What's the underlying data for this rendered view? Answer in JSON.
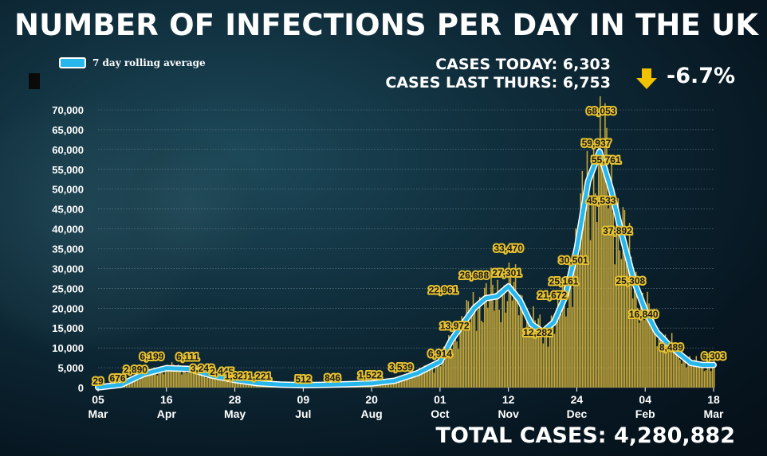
{
  "title": "NUMBER OF INFECTIONS PER DAY IN THE UK",
  "legend": {
    "label": "7 day rolling average",
    "color": "#27b7ec"
  },
  "stats": {
    "cases_today": "CASES TODAY: 6,303",
    "cases_last_thurs": "CASES LAST THURS: 6,753",
    "change": "-6.7%",
    "arrow_icon": "down-arrow-icon",
    "arrow_color": "#f2c200"
  },
  "total": "TOTAL CASES: 4,280,882",
  "colors": {
    "bar": "#c7aa3c",
    "label_box": "#e8c431",
    "label_text": "#1a1a1a",
    "grid": "#6a7f8a"
  },
  "chart_data": {
    "type": "bar",
    "xlabel": "",
    "ylabel": "",
    "ylim": [
      0,
      70000
    ],
    "yticks": [
      0,
      5000,
      10000,
      15000,
      20000,
      25000,
      30000,
      35000,
      40000,
      45000,
      50000,
      55000,
      60000,
      65000,
      70000
    ],
    "ytick_labels": [
      "0",
      "5,000",
      "10,000",
      "15,000",
      "20,000",
      "25,000",
      "30,000",
      "35,000",
      "40,000",
      "45,000",
      "50,000",
      "55,000",
      "60,000",
      "65,000",
      "70,000"
    ],
    "x_start": "2020-03-05",
    "xticks": [
      {
        "date": "2020-03-05",
        "day": "05",
        "month": "Mar"
      },
      {
        "date": "2020-04-16",
        "day": "16",
        "month": "Apr"
      },
      {
        "date": "2020-05-28",
        "day": "28",
        "month": "May"
      },
      {
        "date": "2020-07-09",
        "day": "09",
        "month": "Jul"
      },
      {
        "date": "2020-08-20",
        "day": "20",
        "month": "Aug"
      },
      {
        "date": "2020-10-01",
        "day": "01",
        "month": "Oct"
      },
      {
        "date": "2020-11-12",
        "day": "12",
        "month": "Nov"
      },
      {
        "date": "2020-12-24",
        "day": "24",
        "month": "Dec"
      },
      {
        "date": "2021-02-04",
        "day": "04",
        "month": "Feb"
      },
      {
        "date": "2021-03-18",
        "day": "18",
        "month": "Mar"
      }
    ],
    "series": [
      {
        "name": "7 day rolling average",
        "type": "line",
        "points": [
          {
            "date": "2020-03-05",
            "value": 50
          },
          {
            "date": "2020-03-19",
            "value": 700
          },
          {
            "date": "2020-04-02",
            "value": 3400
          },
          {
            "date": "2020-04-16",
            "value": 4900
          },
          {
            "date": "2020-04-30",
            "value": 4700
          },
          {
            "date": "2020-05-14",
            "value": 3000
          },
          {
            "date": "2020-05-28",
            "value": 1900
          },
          {
            "date": "2020-06-11",
            "value": 1100
          },
          {
            "date": "2020-06-25",
            "value": 750
          },
          {
            "date": "2020-07-09",
            "value": 600
          },
          {
            "date": "2020-07-23",
            "value": 700
          },
          {
            "date": "2020-08-06",
            "value": 850
          },
          {
            "date": "2020-08-20",
            "value": 1050
          },
          {
            "date": "2020-09-03",
            "value": 1700
          },
          {
            "date": "2020-09-17",
            "value": 3600
          },
          {
            "date": "2020-10-01",
            "value": 6500
          },
          {
            "date": "2020-10-08",
            "value": 12000
          },
          {
            "date": "2020-10-15",
            "value": 16000
          },
          {
            "date": "2020-10-22",
            "value": 20000
          },
          {
            "date": "2020-10-29",
            "value": 22500
          },
          {
            "date": "2020-11-05",
            "value": 23000
          },
          {
            "date": "2020-11-12",
            "value": 25500
          },
          {
            "date": "2020-11-19",
            "value": 22000
          },
          {
            "date": "2020-11-26",
            "value": 16000
          },
          {
            "date": "2020-12-03",
            "value": 14000
          },
          {
            "date": "2020-12-10",
            "value": 16500
          },
          {
            "date": "2020-12-17",
            "value": 23000
          },
          {
            "date": "2020-12-24",
            "value": 35000
          },
          {
            "date": "2020-12-31",
            "value": 52000
          },
          {
            "date": "2021-01-07",
            "value": 59500
          },
          {
            "date": "2021-01-14",
            "value": 50000
          },
          {
            "date": "2021-01-21",
            "value": 38000
          },
          {
            "date": "2021-01-28",
            "value": 27000
          },
          {
            "date": "2021-02-04",
            "value": 19500
          },
          {
            "date": "2021-02-11",
            "value": 14000
          },
          {
            "date": "2021-02-18",
            "value": 11000
          },
          {
            "date": "2021-02-25",
            "value": 8500
          },
          {
            "date": "2021-03-04",
            "value": 6200
          },
          {
            "date": "2021-03-11",
            "value": 5700
          },
          {
            "date": "2021-03-18",
            "value": 5700
          }
        ]
      }
    ],
    "annotations": [
      {
        "label": "29",
        "date": "2020-03-05",
        "value": 29
      },
      {
        "label": "676",
        "date": "2020-03-17",
        "value": 676
      },
      {
        "label": "2,890",
        "date": "2020-03-28",
        "value": 2890
      },
      {
        "label": "6,199",
        "date": "2020-04-07",
        "value": 6199
      },
      {
        "label": "6,111",
        "date": "2020-04-29",
        "value": 6111
      },
      {
        "label": "3,242",
        "date": "2020-05-08",
        "value": 3242
      },
      {
        "label": "2,445",
        "date": "2020-05-20",
        "value": 2445
      },
      {
        "label": "1,321",
        "date": "2020-05-29",
        "value": 1321
      },
      {
        "label": "1,221",
        "date": "2020-06-12",
        "value": 1221
      },
      {
        "label": "512",
        "date": "2020-07-09",
        "value": 512
      },
      {
        "label": "846",
        "date": "2020-07-27",
        "value": 846
      },
      {
        "label": "1,522",
        "date": "2020-08-19",
        "value": 1522
      },
      {
        "label": "3,539",
        "date": "2020-09-07",
        "value": 3539
      },
      {
        "label": "6,914",
        "date": "2020-10-01",
        "value": 6914
      },
      {
        "label": "13,972",
        "date": "2020-10-10",
        "value": 13972
      },
      {
        "label": "22,961",
        "date": "2020-10-03",
        "value": 22961
      },
      {
        "label": "26,688",
        "date": "2020-10-22",
        "value": 26688
      },
      {
        "label": "27,301",
        "date": "2020-11-11",
        "value": 27301
      },
      {
        "label": "33,470",
        "date": "2020-11-12",
        "value": 33470
      },
      {
        "label": "12,282",
        "date": "2020-11-30",
        "value": 12282
      },
      {
        "label": "21,672",
        "date": "2020-12-09",
        "value": 21672
      },
      {
        "label": "25,161",
        "date": "2020-12-16",
        "value": 25161
      },
      {
        "label": "30,501",
        "date": "2020-12-22",
        "value": 30501
      },
      {
        "label": "45,533",
        "date": "2021-01-08",
        "value": 45533
      },
      {
        "label": "59,937",
        "date": "2021-01-05",
        "value": 59937
      },
      {
        "label": "68,053",
        "date": "2021-01-08",
        "value": 68053
      },
      {
        "label": "55,761",
        "date": "2021-01-11",
        "value": 55761
      },
      {
        "label": "37,892",
        "date": "2021-01-18",
        "value": 37892
      },
      {
        "label": "25,308",
        "date": "2021-01-26",
        "value": 25308
      },
      {
        "label": "16,840",
        "date": "2021-02-03",
        "value": 16840
      },
      {
        "label": "8,489",
        "date": "2021-02-20",
        "value": 8489
      },
      {
        "label": "6,303",
        "date": "2021-03-18",
        "value": 6303
      }
    ],
    "grid": true,
    "legend_position": "top-left"
  }
}
